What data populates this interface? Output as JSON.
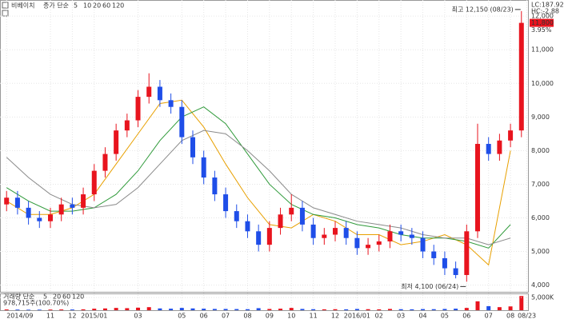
{
  "chart_data": {
    "type": "candlestick",
    "title": "비베이치",
    "legend_label": "종가 단순",
    "info": [
      "LC:187.92",
      "HC:-2.88"
    ],
    "last_price_label": "11,800",
    "last_change_label": "3.95%",
    "x": [
      0,
      0.5,
      1,
      1.5,
      2,
      2.5,
      3,
      3.5,
      4,
      4.5,
      5,
      5.5,
      6,
      6.5,
      7,
      7.5,
      8,
      8.5,
      9,
      9.5,
      10,
      10.5,
      11,
      11.5,
      12,
      12.5,
      13,
      13.5,
      14,
      14.5,
      15,
      15.5,
      16,
      16.5,
      17,
      17.5,
      18,
      18.5,
      19,
      19.5,
      20,
      20.5,
      21,
      21.5,
      22,
      22.5,
      23,
      23.5
    ],
    "open": [
      6400,
      6600,
      6300,
      6000,
      5900,
      6100,
      6400,
      6300,
      6700,
      7400,
      7900,
      8600,
      8900,
      9600,
      9900,
      9500,
      9300,
      8400,
      7800,
      7200,
      6700,
      6200,
      5900,
      5600,
      5200,
      5700,
      6100,
      6300,
      5800,
      5400,
      5500,
      5700,
      5400,
      5100,
      5200,
      5300,
      5600,
      5500,
      5400,
      5000,
      4800,
      4500,
      4300,
      5600,
      8200,
      7900,
      8300,
      8600
    ],
    "high": [
      6800,
      6800,
      6500,
      6200,
      6300,
      6600,
      6600,
      6900,
      7600,
      8100,
      8800,
      9100,
      9800,
      10300,
      10100,
      9700,
      9500,
      8600,
      8000,
      7400,
      6900,
      6400,
      6100,
      5800,
      5900,
      6300,
      6700,
      6500,
      6000,
      5700,
      5900,
      5900,
      5600,
      5400,
      5500,
      5800,
      5800,
      5700,
      5600,
      5200,
      5000,
      4700,
      5800,
      8800,
      8400,
      8500,
      8800,
      12150
    ],
    "low": [
      6200,
      6100,
      5800,
      5700,
      5700,
      5900,
      6100,
      6100,
      6500,
      7200,
      7700,
      8400,
      8700,
      9400,
      9300,
      9100,
      8200,
      7600,
      7000,
      6500,
      6000,
      5700,
      5400,
      5000,
      5000,
      5500,
      5900,
      5600,
      5200,
      5200,
      5300,
      5200,
      4900,
      4900,
      5000,
      5100,
      5300,
      5200,
      4800,
      4600,
      4300,
      4200,
      4100,
      5400,
      7700,
      7700,
      8100,
      8400
    ],
    "close": [
      6600,
      6300,
      6000,
      5900,
      6100,
      6400,
      6300,
      6700,
      7400,
      7900,
      8600,
      8900,
      9600,
      9900,
      9500,
      9300,
      8400,
      7800,
      7200,
      6700,
      6200,
      5900,
      5600,
      5200,
      5700,
      6100,
      6300,
      5800,
      5400,
      5500,
      5700,
      5400,
      5100,
      5200,
      5300,
      5600,
      5500,
      5400,
      5000,
      4800,
      4500,
      4300,
      5600,
      8200,
      7900,
      8300,
      8600,
      11800
    ],
    "up_color": "#e8141e",
    "down_color": "#1f4ee8",
    "ma_series": [
      {
        "name": "5",
        "color": "#c8149b"
      },
      {
        "name": "10",
        "color": "#1f4ee8"
      },
      {
        "name": "20",
        "color": "#e8a000",
        "x": [
          0,
          1,
          2,
          3,
          4,
          5,
          6,
          7,
          8,
          9,
          10,
          11,
          12,
          13,
          14,
          15,
          16,
          17,
          18,
          19,
          20,
          21,
          22,
          23
        ],
        "values": [
          6500,
          6100,
          6100,
          6300,
          6700,
          7600,
          8500,
          9400,
          9500,
          8700,
          7600,
          6600,
          5800,
          5700,
          6100,
          5900,
          5500,
          5500,
          5200,
          5300,
          5500,
          5200,
          4600,
          8000
        ]
      },
      {
        "name": "60",
        "color": "#2f9a3a",
        "x": [
          0,
          1,
          2,
          3,
          4,
          5,
          6,
          7,
          8,
          9,
          10,
          11,
          12,
          13,
          14,
          15,
          16,
          17,
          18,
          19,
          20,
          21,
          22,
          23
        ],
        "values": [
          6900,
          6500,
          6200,
          6200,
          6300,
          6700,
          7400,
          8300,
          9000,
          9300,
          8800,
          7900,
          7000,
          6400,
          6100,
          6000,
          5800,
          5700,
          5500,
          5400,
          5400,
          5300,
          5100,
          5800
        ]
      },
      {
        "name": "120",
        "color": "#8a8a8a",
        "x": [
          0,
          1,
          2,
          3,
          4,
          5,
          6,
          7,
          8,
          9,
          10,
          11,
          12,
          13,
          14,
          15,
          16,
          17,
          18,
          19,
          20,
          21,
          22,
          23
        ],
        "values": [
          7800,
          7200,
          6700,
          6400,
          6300,
          6400,
          6900,
          7600,
          8300,
          8600,
          8500,
          8000,
          7400,
          6700,
          6300,
          6100,
          5900,
          5800,
          5700,
          5500,
          5400,
          5400,
          5200,
          5400
        ]
      }
    ],
    "xlim": [
      -0.3,
      23.8
    ],
    "ylim": [
      3800,
      12480
    ],
    "yticks": [
      {
        "value": 4000,
        "label": "4,000"
      },
      {
        "value": 5000,
        "label": "5,000"
      },
      {
        "value": 6000,
        "label": "6,000"
      },
      {
        "value": 7000,
        "label": "7,000"
      },
      {
        "value": 8000,
        "label": "8,000"
      },
      {
        "value": 9000,
        "label": "9,000"
      },
      {
        "value": 10000,
        "label": "10,000"
      },
      {
        "value": 11000,
        "label": "11,000"
      },
      {
        "value": 12000,
        "label": "12,000"
      }
    ],
    "xticks": [
      {
        "value": 0,
        "label": "2014/09"
      },
      {
        "value": 2,
        "label": "11"
      },
      {
        "value": 3,
        "label": "12"
      },
      {
        "value": 4,
        "label": "2015/01"
      },
      {
        "value": 6,
        "label": "03"
      },
      {
        "value": 8,
        "label": "05"
      },
      {
        "value": 9,
        "label": "06"
      },
      {
        "value": 10,
        "label": "07"
      },
      {
        "value": 11,
        "label": "08"
      },
      {
        "value": 12,
        "label": "09"
      },
      {
        "value": 13,
        "label": "10"
      },
      {
        "value": 14,
        "label": "11"
      },
      {
        "value": 15,
        "label": "12"
      },
      {
        "value": 16,
        "label": "2016/01"
      },
      {
        "value": 17,
        "label": "02"
      },
      {
        "value": 18,
        "label": "03"
      },
      {
        "value": 19,
        "label": "04"
      },
      {
        "value": 20,
        "label": "05"
      },
      {
        "value": 21,
        "label": "06"
      },
      {
        "value": 22,
        "label": "07"
      },
      {
        "value": 23,
        "label": "08"
      },
      {
        "value": 23.75,
        "label": "08/23"
      }
    ],
    "annotations": [
      {
        "text": "최고 12,150 (08/23)",
        "index": 47,
        "at": "high"
      },
      {
        "text": "최저 4,100 (06/24)",
        "index": 42,
        "at": "low"
      }
    ],
    "volume": {
      "legend_label": "거래량 단순",
      "ma_names": [
        {
          "name": "5",
          "color": "#c8149b"
        },
        {
          "name": "20",
          "color": "#e8a000"
        },
        {
          "name": "60",
          "color": "#2f9a3a"
        },
        {
          "name": "120",
          "color": "#8a8a8a"
        }
      ],
      "info": "978,715주(100.70%)",
      "values": [
        300,
        250,
        200,
        220,
        260,
        300,
        280,
        350,
        600,
        700,
        900,
        800,
        1000,
        1200,
        700,
        600,
        900,
        700,
        600,
        500,
        500,
        450,
        400,
        800,
        500,
        600,
        900,
        500,
        400,
        350,
        400,
        350,
        500,
        400,
        350,
        500,
        400,
        350,
        450,
        400,
        500,
        600,
        900,
        3500,
        1600,
        1200,
        1500,
        5600
      ],
      "ylim": [
        0,
        6300
      ],
      "yticks": [
        {
          "value": 5000,
          "label": "5,000K"
        }
      ]
    }
  }
}
